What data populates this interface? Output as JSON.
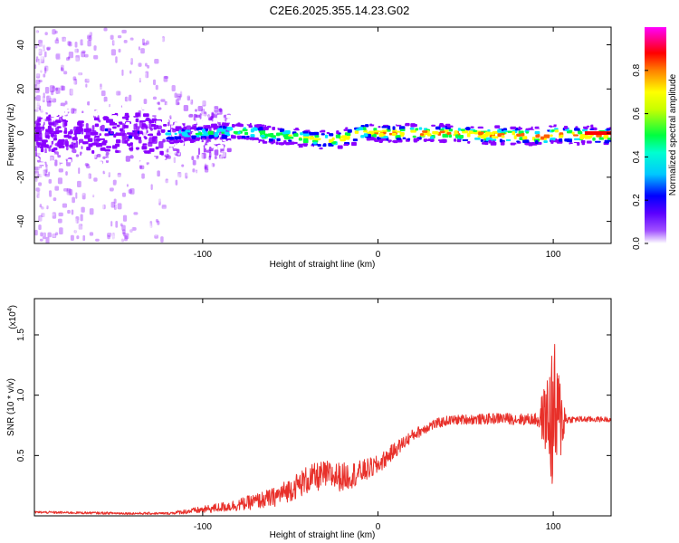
{
  "title": "C2E6.2025.355.14.23.G02",
  "chart_data": [
    {
      "type": "heatmap",
      "xlabel": "Height of straight line (km)",
      "ylabel": "Frequency (Hz)",
      "xlim": [
        -196,
        133
      ],
      "ylim": [
        -50,
        48
      ],
      "xticks": [
        -100,
        0,
        100
      ],
      "xtick_labels": [
        "-100",
        "0",
        "100"
      ],
      "yticks": [
        -40,
        -20,
        0,
        20,
        40
      ],
      "ytick_labels": [
        "-40",
        "-20",
        "0",
        "20",
        "40"
      ],
      "ridge_center_freq": {
        "x": [
          -196,
          -150,
          -122,
          -100,
          -80,
          -60,
          -45,
          -35,
          -25,
          -15,
          -8,
          0,
          10,
          20,
          40,
          60,
          80,
          95,
          100,
          110,
          133
        ],
        "y": [
          -1,
          0,
          -1,
          0,
          1,
          -1,
          -2,
          -3,
          -3,
          -1,
          1,
          0,
          0,
          0,
          0,
          -1,
          -1,
          -2,
          0,
          -1,
          -1
        ]
      },
      "colorbar": {
        "label": "Normalized spectral amplitude",
        "range": [
          0,
          1
        ],
        "ticks": [
          0.0,
          0.2,
          0.4,
          0.6,
          0.8
        ],
        "tick_labels": [
          "0.0",
          "0.2",
          "0.4",
          "0.6",
          "0.8"
        ],
        "colors": [
          "#ffffff",
          "#8a00ff",
          "#0000ff",
          "#00e5ff",
          "#00ff40",
          "#ffff00",
          "#ff6000",
          "#ff0000",
          "#ff00ff"
        ]
      }
    },
    {
      "type": "line",
      "xlabel": "Height of straight line (km)",
      "ylabel": "SNR (10 * v/v)",
      "scale_note": "(x10",
      "scale_exp": "4",
      "xlim": [
        -196,
        133
      ],
      "ylim": [
        0,
        1.8
      ],
      "xticks": [
        -100,
        0,
        100
      ],
      "xtick_labels": [
        "-100",
        "0",
        "100"
      ],
      "yticks": [
        0.5,
        1.0,
        1.5
      ],
      "ytick_labels": [
        "0.5",
        "1.0",
        "1.5"
      ],
      "line_color": "#e8302a",
      "baseline": {
        "x": [
          -196,
          -140,
          -120,
          -100,
          -80,
          -60,
          -50,
          -40,
          -30,
          -20,
          -10,
          0,
          10,
          20,
          30,
          40,
          50,
          60,
          70,
          80,
          90,
          95,
          100,
          110,
          133
        ],
        "y": [
          0.03,
          0.02,
          0.02,
          0.05,
          0.09,
          0.15,
          0.22,
          0.3,
          0.34,
          0.32,
          0.36,
          0.42,
          0.55,
          0.67,
          0.75,
          0.79,
          0.8,
          0.8,
          0.81,
          0.8,
          0.8,
          0.82,
          0.8,
          0.8,
          0.8
        ]
      },
      "noise_amp": {
        "x": [
          -196,
          -120,
          -100,
          -80,
          -60,
          -40,
          -20,
          0,
          20,
          40,
          90,
          96,
          100,
          108,
          133
        ],
        "y": [
          0.01,
          0.01,
          0.03,
          0.05,
          0.08,
          0.12,
          0.12,
          0.08,
          0.05,
          0.04,
          0.05,
          0.3,
          0.7,
          0.03,
          0.02
        ]
      }
    }
  ]
}
